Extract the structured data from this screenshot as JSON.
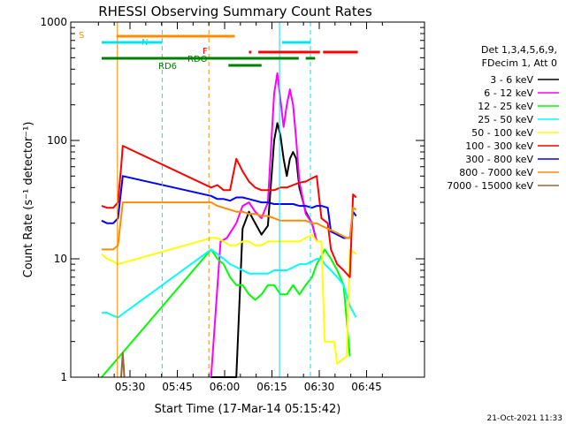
{
  "chart_data": {
    "type": "line",
    "title": "RHESSI Observing Summary Count Rates",
    "xlabel": "Start Time (17-Mar-14 05:15:42)",
    "ylabel": "Count Rate (s⁻¹ detector⁻¹)",
    "yscale": "log",
    "ylim": [
      1,
      1000
    ],
    "xlim_minutes": [
      5.3,
      73.0
    ],
    "x_ticks": [
      "05:30",
      "05:45",
      "06:00",
      "06:15",
      "06:30",
      "06:45"
    ],
    "y_ticks": [
      "1",
      "10",
      "100",
      "1000"
    ],
    "legend_header": [
      "Det 1,3,4,5,6,9,",
      "FDecim 1, Att 0"
    ],
    "legend_position": "right",
    "footer": "21-Oct-2021 11:33",
    "flags": [
      {
        "label": "S",
        "color": "#ff8c00",
        "segments": [
          [
            10.0,
            47.5
          ]
        ]
      },
      {
        "label": "N",
        "color": "#00e5ee",
        "segments": [
          [
            5.3,
            24.5
          ],
          [
            62.5,
            71.5
          ]
        ]
      },
      {
        "label": "RDO",
        "color": "#008000",
        "segments": [
          [
            5.3,
            67.8
          ],
          [
            70.0,
            73.0
          ]
        ]
      },
      {
        "label": "RD6",
        "color": "#008000",
        "segments": [
          [
            45.5,
            56.0
          ]
        ]
      },
      {
        "label": "F",
        "color": "#ff0000",
        "segments": [
          [
            52.0,
            52.8
          ],
          [
            55.0,
            74.5
          ],
          [
            75.5,
            86.5
          ]
        ]
      }
    ],
    "vlines": [
      {
        "x": 10.3,
        "color": "#ff8c00",
        "style": "solid"
      },
      {
        "x": 24.5,
        "color": "#00e5ee",
        "style": "dashed"
      },
      {
        "x": 39.3,
        "color": "#ff8c00",
        "style": "dashed"
      },
      {
        "x": 61.7,
        "color": "#00e5ee",
        "style": "solid"
      },
      {
        "x": 71.5,
        "color": "#00e5ee",
        "style": "dashed"
      }
    ],
    "series": [
      {
        "name": "3 - 6 keV",
        "color": "#000000",
        "points": [
          [
            40,
            1
          ],
          [
            48,
            1
          ],
          [
            50,
            18
          ],
          [
            52,
            25
          ],
          [
            54,
            20
          ],
          [
            56,
            16
          ],
          [
            58,
            19
          ],
          [
            60,
            100
          ],
          [
            61,
            140
          ],
          [
            62,
            110
          ],
          [
            63,
            70
          ],
          [
            64,
            50
          ],
          [
            65,
            70
          ],
          [
            66,
            80
          ],
          [
            67,
            70
          ],
          [
            68,
            40
          ],
          [
            70,
            25
          ],
          [
            72,
            20
          ],
          [
            73.5,
            14
          ]
        ]
      },
      {
        "name": "6 - 12 keV",
        "color": "#ff00ff",
        "points": [
          [
            40,
            1
          ],
          [
            43,
            14
          ],
          [
            45,
            15
          ],
          [
            48,
            20
          ],
          [
            50,
            28
          ],
          [
            52,
            30
          ],
          [
            54,
            25
          ],
          [
            56,
            22
          ],
          [
            58,
            30
          ],
          [
            60,
            250
          ],
          [
            61,
            370
          ],
          [
            62,
            220
          ],
          [
            63,
            130
          ],
          [
            64,
            200
          ],
          [
            65,
            270
          ],
          [
            66,
            200
          ],
          [
            67,
            100
          ],
          [
            68,
            45
          ],
          [
            70,
            24
          ],
          [
            72,
            20
          ],
          [
            73.5,
            14
          ]
        ]
      },
      {
        "name": "12 - 25 keV",
        "color": "#00ff00",
        "points": [
          [
            5.3,
            1
          ],
          [
            40,
            12
          ],
          [
            42,
            10
          ],
          [
            44,
            9
          ],
          [
            46,
            7
          ],
          [
            48,
            6
          ],
          [
            50,
            6
          ],
          [
            52,
            5
          ],
          [
            54,
            4.5
          ],
          [
            56,
            5
          ],
          [
            58,
            6
          ],
          [
            60,
            6
          ],
          [
            62,
            5
          ],
          [
            64,
            5
          ],
          [
            66,
            6
          ],
          [
            68,
            5
          ],
          [
            70,
            6
          ],
          [
            72,
            7
          ],
          [
            73.5,
            9
          ],
          [
            74.5,
            10
          ],
          [
            76,
            12
          ],
          [
            78,
            10
          ],
          [
            80,
            8
          ],
          [
            82,
            6
          ],
          [
            84,
            1.5
          ]
        ]
      },
      {
        "name": "25 - 50 keV",
        "color": "#00ffff",
        "points": [
          [
            5.3,
            3.5
          ],
          [
            7,
            3.5
          ],
          [
            9,
            3.3
          ],
          [
            10.5,
            3.2
          ],
          [
            40,
            12
          ],
          [
            42,
            11
          ],
          [
            44,
            10
          ],
          [
            46,
            9
          ],
          [
            48,
            8.5
          ],
          [
            50,
            8
          ],
          [
            52,
            7.5
          ],
          [
            54,
            7.5
          ],
          [
            56,
            7.5
          ],
          [
            58,
            7.5
          ],
          [
            60,
            8
          ],
          [
            62,
            8
          ],
          [
            64,
            8
          ],
          [
            66,
            8.5
          ],
          [
            68,
            9
          ],
          [
            70,
            9
          ],
          [
            72,
            9.5
          ],
          [
            73.5,
            10
          ],
          [
            75,
            10
          ],
          [
            76,
            9
          ],
          [
            78,
            8
          ],
          [
            80,
            7
          ],
          [
            82,
            6
          ],
          [
            84,
            4
          ],
          [
            86,
            3.2
          ]
        ]
      },
      {
        "name": "50 - 100 keV",
        "color": "#ffff00",
        "points": [
          [
            5.3,
            11
          ],
          [
            7,
            10
          ],
          [
            9,
            9.5
          ],
          [
            10.5,
            9
          ],
          [
            40,
            15
          ],
          [
            42,
            15
          ],
          [
            44,
            14
          ],
          [
            46,
            13
          ],
          [
            48,
            13
          ],
          [
            50,
            14
          ],
          [
            52,
            14
          ],
          [
            54,
            13
          ],
          [
            56,
            13
          ],
          [
            58,
            14
          ],
          [
            60,
            14
          ],
          [
            62,
            14
          ],
          [
            64,
            14
          ],
          [
            66,
            14
          ],
          [
            68,
            14
          ],
          [
            70,
            15
          ],
          [
            72,
            16
          ],
          [
            73.5,
            14
          ],
          [
            75,
            14
          ],
          [
            76,
            2
          ],
          [
            79,
            2
          ],
          [
            80,
            1.3
          ],
          [
            83,
            1.5
          ],
          [
            84,
            12
          ],
          [
            86,
            11
          ]
        ]
      },
      {
        "name": "100 - 300 keV",
        "color": "#ff0000",
        "points": [
          [
            5.3,
            28
          ],
          [
            7,
            27
          ],
          [
            9,
            27
          ],
          [
            10.5,
            30
          ],
          [
            11.5,
            60
          ],
          [
            12,
            90
          ],
          [
            40,
            40
          ],
          [
            42,
            42
          ],
          [
            44,
            38
          ],
          [
            46,
            38
          ],
          [
            48,
            70
          ],
          [
            50,
            55
          ],
          [
            52,
            45
          ],
          [
            54,
            40
          ],
          [
            56,
            38
          ],
          [
            58,
            38
          ],
          [
            60,
            38
          ],
          [
            62,
            40
          ],
          [
            64,
            40
          ],
          [
            66,
            42
          ],
          [
            68,
            44
          ],
          [
            70,
            45
          ],
          [
            72,
            48
          ],
          [
            73.5,
            50
          ],
          [
            75,
            22
          ],
          [
            77,
            20
          ],
          [
            78,
            12
          ],
          [
            80,
            9
          ],
          [
            82,
            8
          ],
          [
            84,
            7
          ],
          [
            85,
            35
          ],
          [
            86,
            33
          ]
        ]
      },
      {
        "name": "300 - 800 keV",
        "color": "#0000ff",
        "points": [
          [
            5.3,
            21
          ],
          [
            7,
            20
          ],
          [
            9,
            20
          ],
          [
            10.5,
            22
          ],
          [
            12,
            50
          ],
          [
            40,
            34
          ],
          [
            42,
            32
          ],
          [
            44,
            32
          ],
          [
            46,
            31
          ],
          [
            48,
            33
          ],
          [
            50,
            33
          ],
          [
            52,
            32
          ],
          [
            54,
            31
          ],
          [
            56,
            30
          ],
          [
            58,
            30
          ],
          [
            60,
            29
          ],
          [
            62,
            29
          ],
          [
            64,
            29
          ],
          [
            66,
            29
          ],
          [
            68,
            28
          ],
          [
            70,
            28
          ],
          [
            72,
            27
          ],
          [
            73.5,
            28
          ],
          [
            75,
            28
          ],
          [
            77,
            27
          ],
          [
            78,
            17
          ],
          [
            80,
            16
          ],
          [
            82,
            15
          ],
          [
            84,
            15
          ],
          [
            85,
            25
          ],
          [
            86,
            23
          ]
        ]
      },
      {
        "name": "800 - 7000 keV",
        "color": "#ff8c00",
        "points": [
          [
            5.3,
            12
          ],
          [
            7,
            12
          ],
          [
            9,
            12
          ],
          [
            10.5,
            13
          ],
          [
            12,
            30
          ],
          [
            40,
            30
          ],
          [
            42,
            28
          ],
          [
            44,
            27
          ],
          [
            46,
            26
          ],
          [
            48,
            25
          ],
          [
            50,
            25
          ],
          [
            52,
            24
          ],
          [
            54,
            24
          ],
          [
            56,
            23
          ],
          [
            58,
            23
          ],
          [
            60,
            22
          ],
          [
            62,
            21
          ],
          [
            64,
            21
          ],
          [
            66,
            21
          ],
          [
            68,
            21
          ],
          [
            70,
            21
          ],
          [
            72,
            20
          ],
          [
            73.5,
            20
          ],
          [
            75,
            19
          ],
          [
            77,
            18
          ],
          [
            79,
            17
          ],
          [
            81,
            16
          ],
          [
            83,
            15
          ],
          [
            84,
            15
          ],
          [
            85,
            27
          ],
          [
            86,
            26
          ]
        ]
      },
      {
        "name": "7000 - 15000 keV",
        "color": "#996633",
        "points": [
          [
            11.5,
            1
          ],
          [
            12,
            1.6
          ],
          [
            12.5,
            1
          ]
        ]
      }
    ]
  }
}
